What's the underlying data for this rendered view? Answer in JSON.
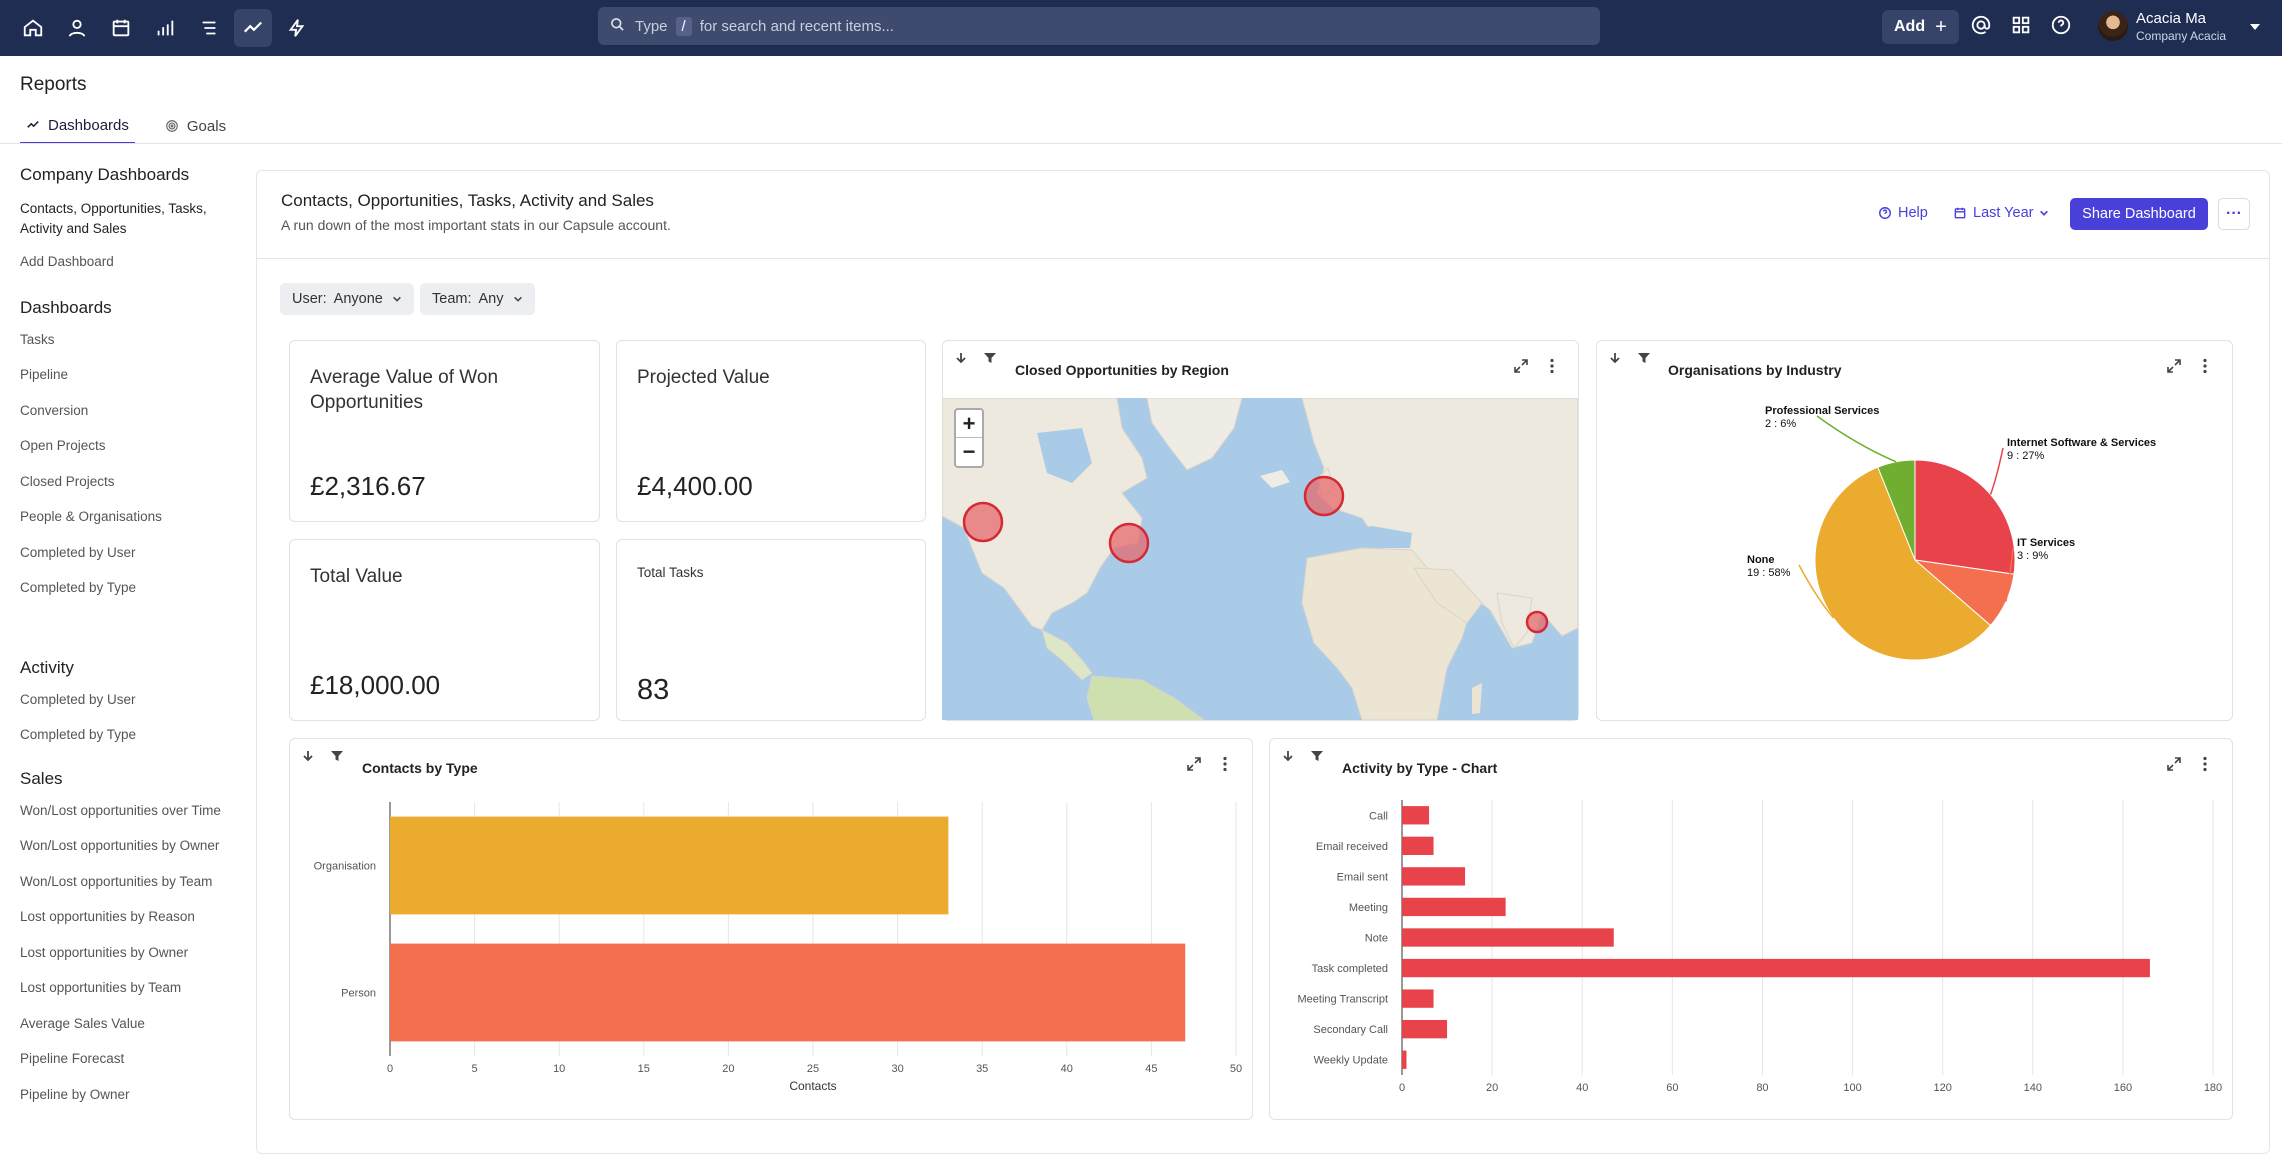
{
  "nav": {
    "icons": [
      "home-icon",
      "person-icon",
      "calendar-icon",
      "bar-signal-icon",
      "list-icon",
      "trend-icon",
      "lightning-icon"
    ],
    "search_kbd_prefix": "Type",
    "search_kbd": "/",
    "search_placeholder": "for search and recent items...",
    "add_label": "Add",
    "user_name": "Acacia Ma",
    "user_company": "Company Acacia"
  },
  "page": {
    "title": "Reports",
    "tabs": [
      {
        "label": "Dashboards"
      },
      {
        "label": "Goals"
      }
    ]
  },
  "sidebar": {
    "company_heading": "Company Dashboards",
    "company_items": [
      "Contacts, Opportunities, Tasks, Activity and Sales",
      "Add Dashboard"
    ],
    "dashboards_heading": "Dashboards",
    "dashboards_items": [
      "Tasks",
      "Pipeline",
      "Conversion",
      "Open Projects",
      "Closed Projects",
      "People & Organisations",
      "Completed by User",
      "Completed by Type"
    ],
    "activity_heading": "Activity",
    "activity_items": [
      "Completed by User",
      "Completed by Type"
    ],
    "sales_heading": "Sales",
    "sales_items": [
      "Won/Lost opportunities over Time",
      "Won/Lost opportunities by Owner",
      "Won/Lost opportunities by Team",
      "Lost opportunities by Reason",
      "Lost opportunities by Owner",
      "Lost opportunities by Team",
      "Average Sales Value",
      "Pipeline Forecast",
      "Pipeline by Owner"
    ]
  },
  "dashboard": {
    "title": "Contacts, Opportunities, Tasks, Activity and Sales",
    "subtitle": "A run down of the most important stats in our Capsule account.",
    "help": "Help",
    "period": "Last Year",
    "share": "Share Dashboard",
    "filters": {
      "user_label": "User:",
      "user_value": "Anyone",
      "team_label": "Team:",
      "team_value": "Any"
    }
  },
  "stats": [
    {
      "label": "Average Value of Won Opportunities",
      "value": "£2,316.67"
    },
    {
      "label": "Projected Value",
      "value": "£4,400.00"
    },
    {
      "label": "Total Value",
      "value": "£18,000.00"
    },
    {
      "label": "Total Tasks",
      "value": "83"
    }
  ],
  "map_widget": {
    "title": "Closed Opportunities by Region",
    "zoom_in": "+",
    "zoom_out": "−"
  },
  "colors": {
    "accent": "#4840d8",
    "nav": "#1f2d52",
    "red": "#e8434a",
    "orange": "#f36f4d",
    "amber": "#ebab2e",
    "green": "#6fae2e"
  },
  "chart_data": [
    {
      "type": "pie",
      "title": "Organisations by Industry",
      "slices": [
        {
          "label": "Internet Software & Services",
          "value": 9,
          "text": "9 : 27%",
          "color": "#e8434a"
        },
        {
          "label": "IT Services",
          "value": 3,
          "text": "3 : 9%",
          "color": "#f36f4d"
        },
        {
          "label": "None",
          "value": 19,
          "text": "19 : 58%",
          "color": "#ebab2e"
        },
        {
          "label": "Professional Services",
          "value": 2,
          "text": "2 : 6%",
          "color": "#6fae2e"
        }
      ]
    },
    {
      "type": "bar",
      "orientation": "horizontal",
      "title": "Contacts by Type",
      "xlabel": "Contacts",
      "categories": [
        "Organisation",
        "Person"
      ],
      "values": [
        33,
        47
      ],
      "colors": [
        "#ebab2e",
        "#f36f4d"
      ],
      "xlim": [
        0,
        50
      ],
      "ticks": [
        0,
        5,
        10,
        15,
        20,
        25,
        30,
        35,
        40,
        45,
        50
      ]
    },
    {
      "type": "bar",
      "orientation": "horizontal",
      "title": "Activity by Type - Chart",
      "categories": [
        "Call",
        "Email received",
        "Email sent",
        "Meeting",
        "Note",
        "Task completed",
        "Meeting Transcript",
        "Secondary Call",
        "Weekly Update"
      ],
      "values": [
        6,
        7,
        14,
        23,
        47,
        166,
        7,
        10,
        1
      ],
      "colors": [
        "#e8434a"
      ],
      "xlim": [
        0,
        180
      ],
      "ticks": [
        0,
        20,
        40,
        60,
        80,
        100,
        120,
        140,
        160,
        180
      ]
    }
  ]
}
